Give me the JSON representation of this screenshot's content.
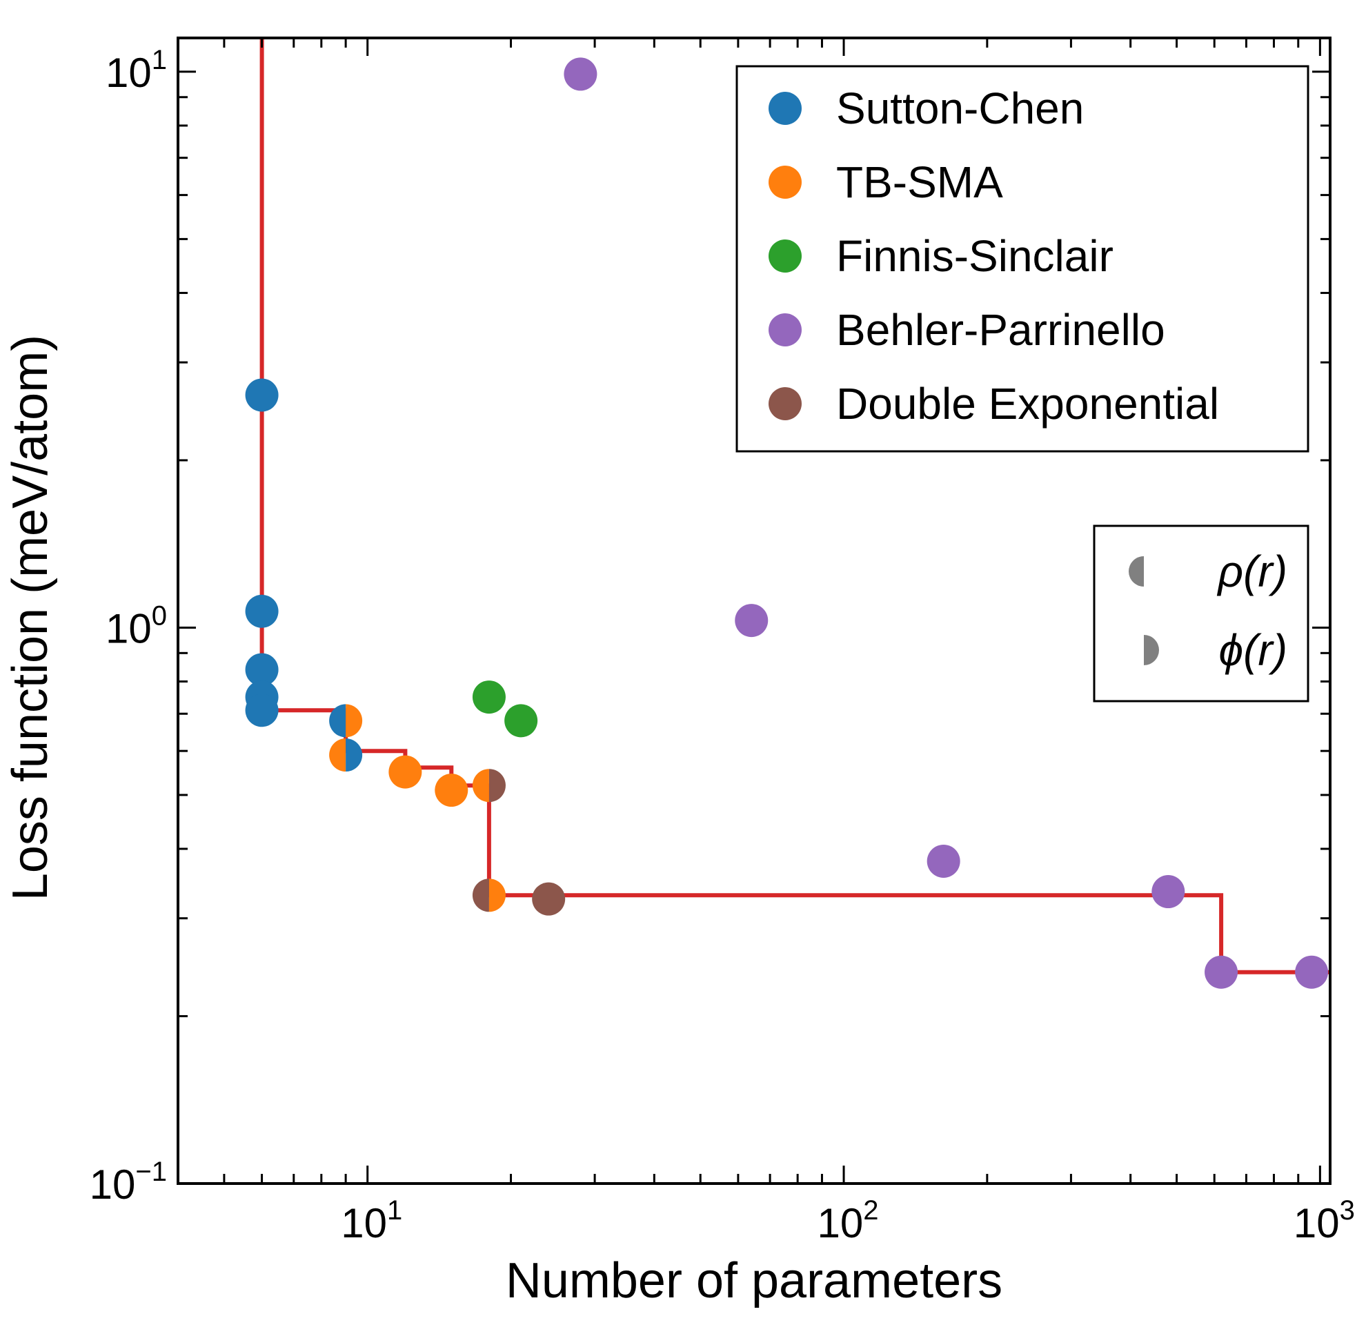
{
  "chart_data": {
    "type": "scatter",
    "title": "",
    "xlabel": "Number of parameters",
    "ylabel": "Loss function (meV/atom)",
    "x_scale": "log",
    "y_scale": "log",
    "xlim": [
      4,
      1050
    ],
    "ylim": [
      0.1,
      11.5
    ],
    "x_ticks": [
      {
        "value": 10,
        "label": "10",
        "exp": "1"
      },
      {
        "value": 100,
        "label": "10",
        "exp": "2"
      },
      {
        "value": 1000,
        "label": "10",
        "exp": "3"
      }
    ],
    "y_ticks": [
      {
        "value": 0.1,
        "label": "10",
        "exp": "−1"
      },
      {
        "value": 1,
        "label": "10",
        "exp": "0"
      },
      {
        "value": 10,
        "label": "10",
        "exp": "1"
      }
    ],
    "grid": false,
    "legend_placement": "top-right",
    "series": [
      {
        "name": "Sutton-Chen",
        "color": "#1f77b4",
        "marker": "full",
        "points": [
          [
            6,
            2.62
          ],
          [
            6,
            1.07
          ],
          [
            6,
            0.84
          ],
          [
            6,
            0.75
          ],
          [
            6,
            0.71
          ]
        ]
      },
      {
        "name": "TB-SMA",
        "color": "#ff7f0e",
        "marker": "full",
        "points": [
          [
            12,
            0.55
          ],
          [
            15,
            0.51
          ]
        ]
      },
      {
        "name": "Finnis-Sinclair",
        "color": "#2ca02c",
        "marker": "full",
        "points": [
          [
            18,
            0.75
          ],
          [
            21,
            0.68
          ]
        ]
      },
      {
        "name": "Behler-Parrinello",
        "color": "#9467bd",
        "marker": "full",
        "points": [
          [
            28,
            9.9
          ],
          [
            64,
            1.03
          ],
          [
            162,
            0.38
          ],
          [
            480,
            0.335
          ],
          [
            620,
            0.24
          ],
          [
            960,
            0.24
          ]
        ]
      },
      {
        "name": "Double Exponential",
        "color": "#8c564b",
        "marker": "full",
        "points": [
          [
            24,
            0.325
          ]
        ]
      }
    ],
    "split_points": [
      {
        "x": 9,
        "y": 0.68,
        "left_color": "#1f77b4",
        "right_color": "#ff7f0e"
      },
      {
        "x": 9,
        "y": 0.59,
        "left_color": "#ff7f0e",
        "right_color": "#1f77b4"
      },
      {
        "x": 18,
        "y": 0.52,
        "left_color": "#ff7f0e",
        "right_color": "#8c564b"
      },
      {
        "x": 18,
        "y": 0.33,
        "left_color": "#8c564b",
        "right_color": "#ff7f0e"
      }
    ],
    "pareto_front": {
      "color": "#d62728",
      "points": [
        [
          6,
          11.5
        ],
        [
          6,
          0.71
        ],
        [
          9,
          0.71
        ],
        [
          9,
          0.6
        ],
        [
          12,
          0.6
        ],
        [
          12,
          0.56
        ],
        [
          15,
          0.56
        ],
        [
          15,
          0.52
        ],
        [
          18,
          0.52
        ],
        [
          18,
          0.33
        ],
        [
          620,
          0.33
        ],
        [
          620,
          0.24
        ],
        [
          1050,
          0.24
        ]
      ]
    },
    "marker_legend": {
      "color": "#808080",
      "items": [
        {
          "side": "left",
          "label": "ρ(r)"
        },
        {
          "side": "right",
          "label": "ϕ(r)"
        }
      ]
    }
  }
}
